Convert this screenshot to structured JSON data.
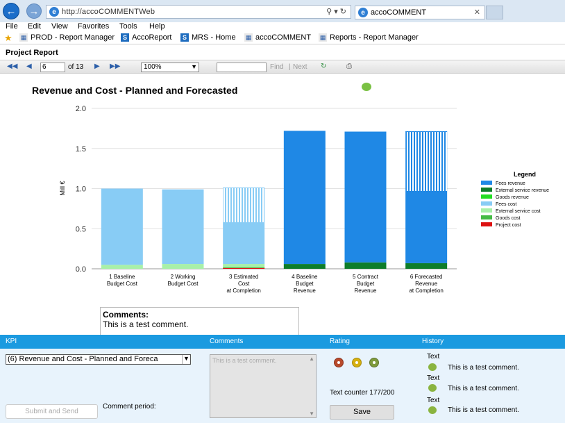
{
  "browser": {
    "address": "http://accoCOMMENTWeb",
    "tab_title": "accoCOMMENT",
    "menu": [
      "File",
      "Edit",
      "View",
      "Favorites",
      "Tools",
      "Help"
    ],
    "favorites": [
      "PROD - Report Manager",
      "AccoReport",
      "MRS - Home",
      "accoCOMMENT",
      "Reports - Report Manager"
    ]
  },
  "report": {
    "title": "Project Report",
    "page": "6",
    "of_pages": "of 13",
    "zoom": "100%",
    "find_label": "Find",
    "next_label": "Next"
  },
  "chart_data": {
    "type": "bar",
    "title": "Revenue and Cost - Planned and Forecasted",
    "ylabel": "Mill €",
    "ylim": [
      0,
      2.0
    ],
    "yticks": [
      "0.0",
      "0.5",
      "1.0",
      "1.5",
      "2.0"
    ],
    "categories": [
      [
        "1 Baseline",
        "Budget Cost"
      ],
      [
        "2 Working",
        "Budget Cost"
      ],
      [
        "3 Estimated",
        "Cost",
        "at Completion"
      ],
      [
        "4 Baseline",
        "Budget",
        "Revenue"
      ],
      [
        "5 Contract",
        "Budget",
        "Revenue"
      ],
      [
        "6 Forecasted",
        "Revenue",
        "at Completion"
      ]
    ],
    "legend_title": "Legend",
    "legend_position": "right",
    "series": [
      {
        "name": "Fees revenue",
        "color": "#1f88e5",
        "values": [
          0,
          0,
          0,
          1.66,
          1.63,
          0.9
        ]
      },
      {
        "name": "External service revenue",
        "color": "#0e7d2a",
        "values": [
          0,
          0,
          0,
          0.06,
          0.08,
          0.07
        ]
      },
      {
        "name": "Goods revenue",
        "color": "#22dd22",
        "values": [
          0,
          0,
          0,
          0,
          0,
          0
        ]
      },
      {
        "name": "Fees cost",
        "color": "#88ccf5",
        "values": [
          0.95,
          0.93,
          0.52,
          0,
          0,
          0
        ]
      },
      {
        "name": "External service cost",
        "color": "#a8f0a8",
        "values": [
          0.05,
          0.06,
          0.04,
          0,
          0,
          0
        ]
      },
      {
        "name": "Goods cost",
        "color": "#44bb44",
        "values": [
          0,
          0,
          0.01,
          0,
          0,
          0
        ]
      },
      {
        "name": "Project cost",
        "color": "#dd1111",
        "values": [
          0,
          0,
          0.01,
          0,
          0,
          0
        ]
      }
    ],
    "forecast_remaining": {
      "values": [
        0,
        0,
        0.43,
        0,
        0,
        0.74
      ],
      "note_pattern": "hatched"
    }
  },
  "comments": {
    "heading": "Comments:",
    "text": "This is a test comment."
  },
  "kpi": {
    "headers": {
      "kpi": "KPI",
      "comments": "Comments",
      "rating": "Rating",
      "history": "History"
    },
    "selected": "(6) Revenue and Cost - Planned and Foreca",
    "comment_placeholder": "This is a test comment.",
    "counter": "Text counter 177/200",
    "save_label": "Save",
    "submit_label": "Submit and Send",
    "period_label": "Comment period:",
    "ratings": [
      {
        "name": "red",
        "color": "#b84a2c"
      },
      {
        "name": "yellow",
        "color": "#d6b010"
      },
      {
        "name": "green",
        "color": "#7e9a3c"
      }
    ],
    "history": [
      {
        "label": "Text",
        "text": "This is a test comment."
      },
      {
        "label": "Text",
        "text": "This is a test comment."
      },
      {
        "label": "Text",
        "text": "This is a test comment."
      }
    ]
  }
}
